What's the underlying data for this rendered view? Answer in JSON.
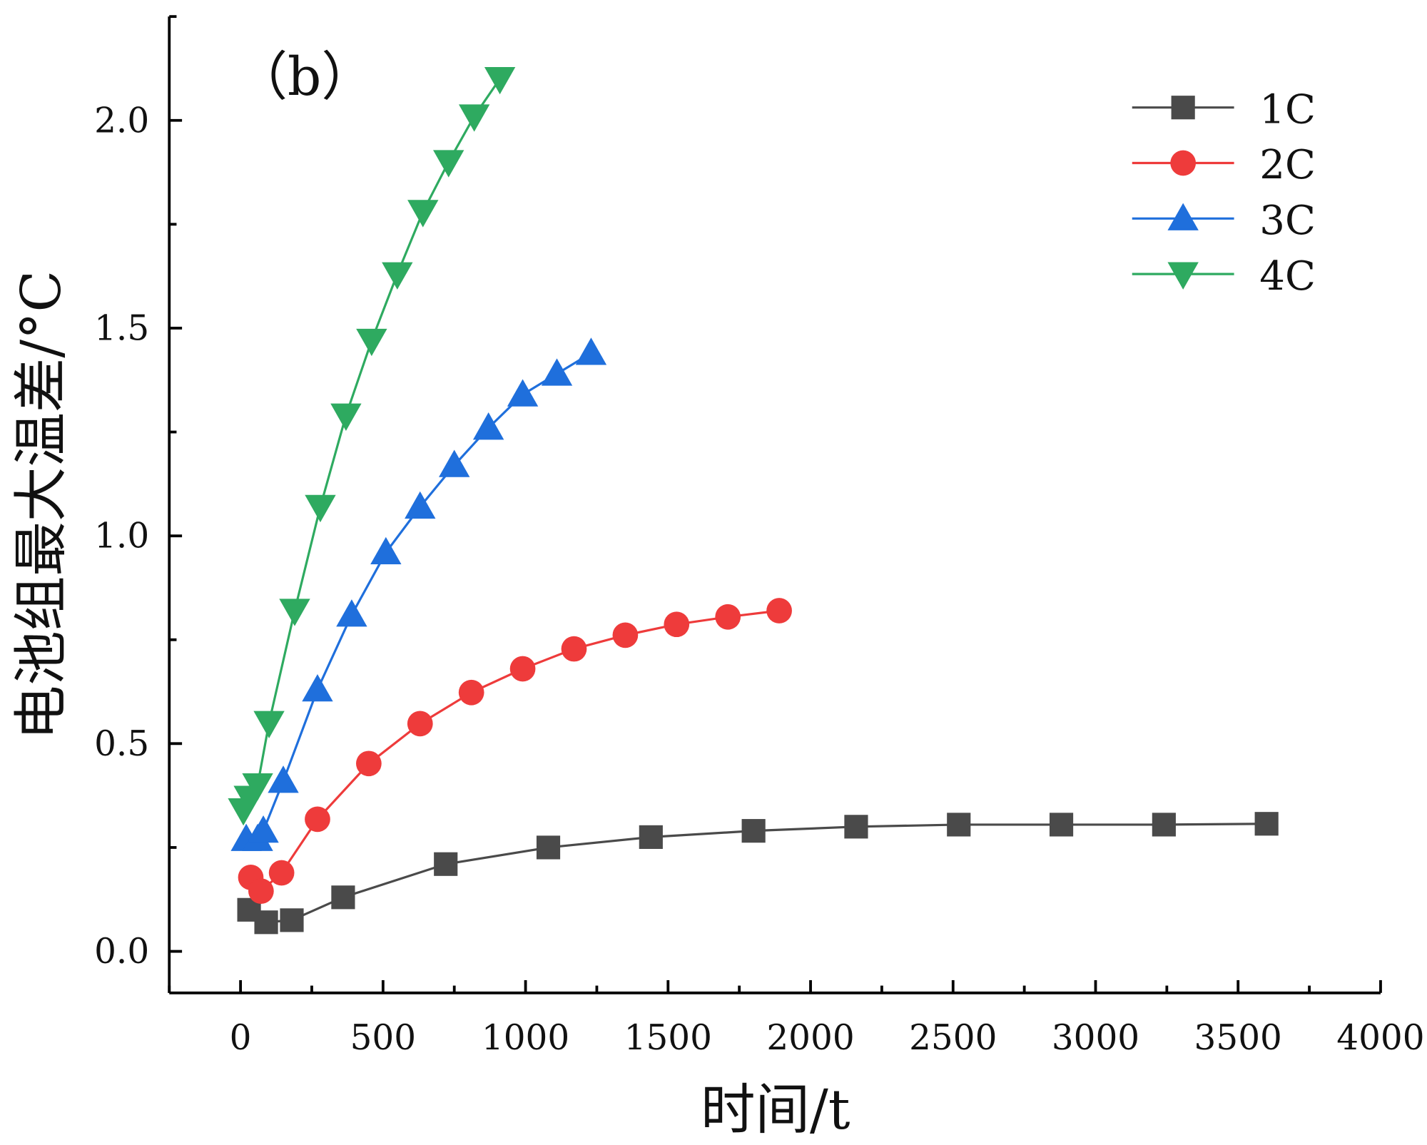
{
  "chart_data": {
    "type": "line",
    "panel_label": "（b）",
    "title": "",
    "xlabel": "时间/t",
    "ylabel": "电池组最大温差/°C",
    "xlim": [
      -250,
      4000
    ],
    "ylim": [
      -0.1,
      2.25
    ],
    "xticks": [
      0,
      500,
      1000,
      1500,
      2000,
      2500,
      3000,
      3500,
      4000
    ],
    "xtick_labels": [
      "0",
      "500",
      "1000",
      "1500",
      "2000",
      "2500",
      "3000",
      "3500",
      "4000"
    ],
    "yticks": [
      0,
      0.5,
      1.0,
      1.5,
      2.0
    ],
    "ytick_labels": [
      "0.0",
      "0.5",
      "1.0",
      "1.5",
      "2.0"
    ],
    "grid": false,
    "legend_position": "top-right",
    "series": [
      {
        "name": "1C",
        "color": "#4a4a4a",
        "marker": "square",
        "x": [
          30,
          90,
          180,
          360,
          720,
          1080,
          1440,
          1800,
          2160,
          2520,
          2880,
          3240,
          3600
        ],
        "y": [
          0.1,
          0.07,
          0.075,
          0.13,
          0.21,
          0.25,
          0.275,
          0.29,
          0.3,
          0.305,
          0.305,
          0.305,
          0.307
        ]
      },
      {
        "name": "2C",
        "color": "#ee3b3b",
        "marker": "circle",
        "x": [
          36,
          72,
          144,
          270,
          450,
          630,
          810,
          990,
          1170,
          1350,
          1530,
          1710,
          1890
        ],
        "y": [
          0.178,
          0.145,
          0.189,
          0.318,
          0.452,
          0.548,
          0.623,
          0.68,
          0.728,
          0.761,
          0.787,
          0.805,
          0.82
        ]
      },
      {
        "name": "3C",
        "color": "#1f6fdc",
        "marker": "triangle-up",
        "x": [
          20,
          60,
          80,
          150,
          270,
          390,
          510,
          630,
          750,
          870,
          990,
          1110,
          1230
        ],
        "y": [
          0.27,
          0.27,
          0.29,
          0.41,
          0.63,
          0.81,
          0.96,
          1.07,
          1.17,
          1.26,
          1.34,
          1.39,
          1.44
        ]
      },
      {
        "name": "4C",
        "color": "#2eaa60",
        "marker": "triangle-down",
        "x": [
          10,
          30,
          60,
          100,
          190,
          280,
          370,
          460,
          550,
          640,
          730,
          820,
          910
        ],
        "y": [
          0.34,
          0.37,
          0.4,
          0.55,
          0.82,
          1.07,
          1.29,
          1.47,
          1.63,
          1.78,
          1.9,
          2.01,
          2.1
        ]
      }
    ]
  }
}
